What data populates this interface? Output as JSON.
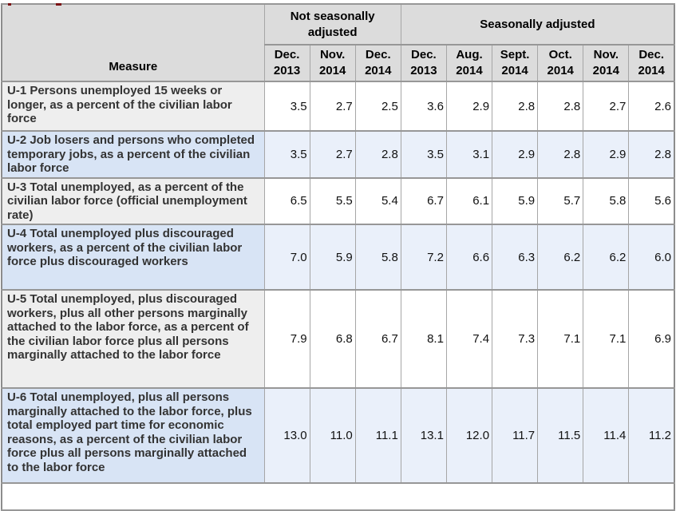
{
  "page": {
    "clipped_heading_color": "#7b1113"
  },
  "table": {
    "measure_header": "Measure",
    "group_headers": {
      "nsa": "Not seasonally adjusted",
      "sa": "Seasonally adjusted"
    },
    "column_headers": [
      "Dec.\n2013",
      "Nov.\n2014",
      "Dec.\n2014",
      "Dec.\n2013",
      "Aug.\n2014",
      "Sept.\n2014",
      "Oct.\n2014",
      "Nov.\n2014",
      "Dec.\n2014"
    ],
    "rows": [
      {
        "measure": "U-1 Persons unemployed 15 weeks or longer, as a percent of the civilian labor force",
        "values": [
          "3.5",
          "2.7",
          "2.5",
          "3.6",
          "2.9",
          "2.8",
          "2.8",
          "2.7",
          "2.6"
        ]
      },
      {
        "measure": "U-2 Job losers and persons who completed temporary jobs, as a percent of the civilian labor force",
        "values": [
          "3.5",
          "2.7",
          "2.8",
          "3.5",
          "3.1",
          "2.9",
          "2.8",
          "2.9",
          "2.8"
        ]
      },
      {
        "measure": "U-3 Total unemployed, as a percent of the civilian labor force (official unemployment rate)",
        "values": [
          "6.5",
          "5.5",
          "5.4",
          "6.7",
          "6.1",
          "5.9",
          "5.7",
          "5.8",
          "5.6"
        ]
      },
      {
        "measure": "U-4 Total unemployed plus discouraged workers, as a percent of the civilian labor force plus discouraged workers",
        "values": [
          "7.0",
          "5.9",
          "5.8",
          "7.2",
          "6.6",
          "6.3",
          "6.2",
          "6.2",
          "6.0"
        ]
      },
      {
        "measure": "U-5 Total unemployed, plus discouraged workers, plus all other persons marginally attached to the labor force, as a percent of the civilian labor force plus all persons marginally attached to the labor force",
        "values": [
          "7.9",
          "6.8",
          "6.7",
          "8.1",
          "7.4",
          "7.3",
          "7.1",
          "7.1",
          "6.9"
        ]
      },
      {
        "measure": "U-6 Total unemployed, plus all persons marginally attached to the labor force, plus total employed part time for economic reasons, as a percent of the civilian labor force plus all persons marginally attached to the labor force",
        "values": [
          "13.0",
          "11.0",
          "11.1",
          "13.1",
          "12.0",
          "11.7",
          "11.5",
          "11.4",
          "11.2"
        ]
      }
    ]
  },
  "chart_data": {
    "type": "table",
    "column_groups": [
      {
        "label": "Not seasonally adjusted",
        "columns": [
          "Dec. 2013",
          "Nov. 2014",
          "Dec. 2014"
        ]
      },
      {
        "label": "Seasonally adjusted",
        "columns": [
          "Dec. 2013",
          "Aug. 2014",
          "Sept. 2014",
          "Oct. 2014",
          "Nov. 2014",
          "Dec. 2014"
        ]
      }
    ],
    "row_header_label": "Measure",
    "rows": [
      {
        "measure": "U-1 Persons unemployed 15 weeks or longer, as a percent of the civilian labor force",
        "not_seasonally_adjusted": [
          3.5,
          2.7,
          2.5
        ],
        "seasonally_adjusted": [
          3.6,
          2.9,
          2.8,
          2.8,
          2.7,
          2.6
        ]
      },
      {
        "measure": "U-2 Job losers and persons who completed temporary jobs, as a percent of the civilian labor force",
        "not_seasonally_adjusted": [
          3.5,
          2.7,
          2.8
        ],
        "seasonally_adjusted": [
          3.5,
          3.1,
          2.9,
          2.8,
          2.9,
          2.8
        ]
      },
      {
        "measure": "U-3 Total unemployed, as a percent of the civilian labor force (official unemployment rate)",
        "not_seasonally_adjusted": [
          6.5,
          5.5,
          5.4
        ],
        "seasonally_adjusted": [
          6.7,
          6.1,
          5.9,
          5.7,
          5.8,
          5.6
        ]
      },
      {
        "measure": "U-4 Total unemployed plus discouraged workers, as a percent of the civilian labor force plus discouraged workers",
        "not_seasonally_adjusted": [
          7.0,
          5.9,
          5.8
        ],
        "seasonally_adjusted": [
          7.2,
          6.6,
          6.3,
          6.2,
          6.2,
          6.0
        ]
      },
      {
        "measure": "U-5 Total unemployed, plus discouraged workers, plus all other persons marginally attached to the labor force, as a percent of the civilian labor force plus all persons marginally attached to the labor force",
        "not_seasonally_adjusted": [
          7.9,
          6.8,
          6.7
        ],
        "seasonally_adjusted": [
          8.1,
          7.4,
          7.3,
          7.1,
          7.1,
          6.9
        ]
      },
      {
        "measure": "U-6 Total unemployed, plus all persons marginally attached to the labor force, plus total employed part time for economic reasons, as a percent of the civilian labor force plus all persons marginally attached to the labor force",
        "not_seasonally_adjusted": [
          13.0,
          11.0,
          11.1
        ],
        "seasonally_adjusted": [
          13.1,
          12.0,
          11.7,
          11.5,
          11.4,
          11.2
        ]
      }
    ]
  }
}
